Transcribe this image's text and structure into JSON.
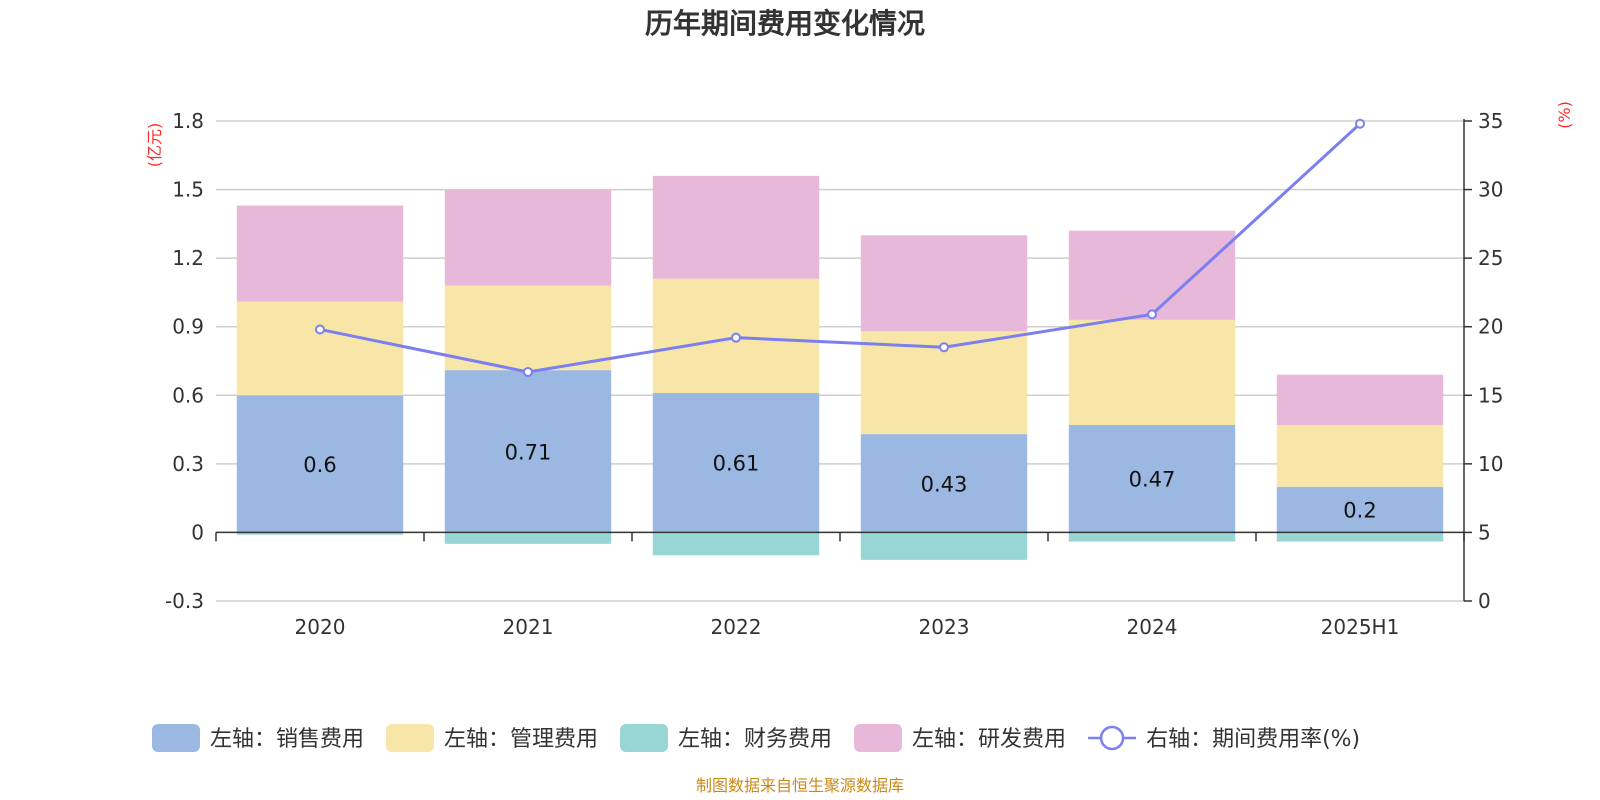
{
  "chart_data": {
    "type": "bar",
    "title": "历年期间费用变化情况",
    "categories": [
      "2020",
      "2021",
      "2022",
      "2023",
      "2024",
      "2025H1"
    ],
    "left_axis": {
      "unit": "(亿元)",
      "ylim": [
        -0.3,
        1.8
      ],
      "ticks": [
        "1.8",
        "1.5",
        "1.2",
        "0.9",
        "0.6",
        "0.3",
        "0",
        "-0.3"
      ],
      "tick_values": [
        1.8,
        1.5,
        1.2,
        0.9,
        0.6,
        0.3,
        0,
        -0.3
      ]
    },
    "right_axis": {
      "unit": "(%)",
      "ylim": [
        0,
        35
      ],
      "ticks": [
        "35",
        "30",
        "25",
        "20",
        "15",
        "10",
        "5",
        "0"
      ],
      "tick_values": [
        35,
        30,
        25,
        20,
        15,
        10,
        5,
        0
      ]
    },
    "series": [
      {
        "name": "左轴：销售费用",
        "type": "bar",
        "color": "#9bb8e2",
        "values": [
          0.6,
          0.71,
          0.61,
          0.43,
          0.47,
          0.2
        ],
        "labels": [
          "0.6",
          "0.71",
          "0.61",
          "0.43",
          "0.47",
          "0.2"
        ]
      },
      {
        "name": "左轴：管理费用",
        "type": "bar",
        "color": "#f7e6a8",
        "values": [
          0.41,
          0.37,
          0.5,
          0.45,
          0.46,
          0.27
        ]
      },
      {
        "name": "左轴：财务费用",
        "type": "bar",
        "color": "#98d5d5",
        "values": [
          -0.01,
          -0.05,
          -0.1,
          -0.12,
          -0.04,
          -0.04
        ]
      },
      {
        "name": "左轴：研发费用",
        "type": "bar",
        "color": "#e7b8d9",
        "values": [
          0.42,
          0.42,
          0.45,
          0.42,
          0.39,
          0.22
        ]
      },
      {
        "name": "右轴：期间费用率(%)",
        "type": "line",
        "color": "#7b7ff0",
        "values": [
          19.8,
          16.7,
          19.2,
          18.5,
          20.9,
          34.8
        ]
      }
    ],
    "grid": true,
    "legend_position": "bottom"
  },
  "source_note": "制图数据来自恒生聚源数据库"
}
